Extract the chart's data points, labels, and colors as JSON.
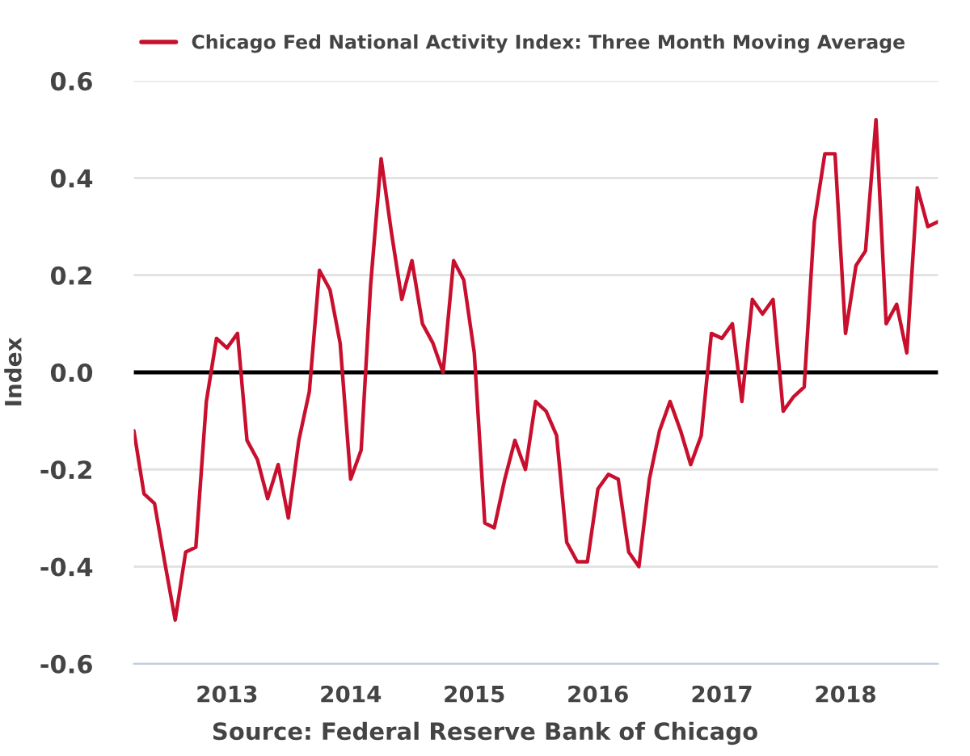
{
  "chart_data": {
    "type": "line",
    "x": [
      "2012-04",
      "2012-05",
      "2012-06",
      "2012-07",
      "2012-08",
      "2012-09",
      "2012-10",
      "2012-11",
      "2012-12",
      "2013-01",
      "2013-02",
      "2013-03",
      "2013-04",
      "2013-05",
      "2013-06",
      "2013-07",
      "2013-08",
      "2013-09",
      "2013-10",
      "2013-11",
      "2013-12",
      "2014-01",
      "2014-02",
      "2014-03",
      "2014-04",
      "2014-05",
      "2014-06",
      "2014-07",
      "2014-08",
      "2014-09",
      "2014-10",
      "2014-11",
      "2014-12",
      "2015-01",
      "2015-02",
      "2015-03",
      "2015-04",
      "2015-05",
      "2015-06",
      "2015-07",
      "2015-08",
      "2015-09",
      "2015-10",
      "2015-11",
      "2015-12",
      "2016-01",
      "2016-02",
      "2016-03",
      "2016-04",
      "2016-05",
      "2016-06",
      "2016-07",
      "2016-08",
      "2016-09",
      "2016-10",
      "2016-11",
      "2016-12",
      "2017-01",
      "2017-02",
      "2017-03",
      "2017-04",
      "2017-05",
      "2017-06",
      "2017-07",
      "2017-08",
      "2017-09",
      "2017-10",
      "2017-11",
      "2017-12",
      "2018-01",
      "2018-02",
      "2018-03",
      "2018-04",
      "2018-05",
      "2018-06",
      "2018-07",
      "2018-08",
      "2018-09",
      "2018-10"
    ],
    "series": [
      {
        "name": "Chicago Fed National Activity Index: Three Month Moving Average",
        "color": "#c8102e",
        "values": [
          -0.12,
          -0.25,
          -0.27,
          -0.39,
          -0.51,
          -0.37,
          -0.36,
          -0.06,
          0.07,
          0.05,
          0.08,
          -0.14,
          -0.18,
          -0.26,
          -0.19,
          -0.3,
          -0.14,
          -0.04,
          0.21,
          0.17,
          0.06,
          -0.22,
          -0.16,
          0.18,
          0.44,
          0.29,
          0.15,
          0.23,
          0.1,
          0.06,
          0.0,
          0.23,
          0.19,
          0.04,
          -0.31,
          -0.32,
          -0.22,
          -0.14,
          -0.2,
          -0.06,
          -0.08,
          -0.13,
          -0.35,
          -0.39,
          -0.39,
          -0.24,
          -0.21,
          -0.22,
          -0.37,
          -0.4,
          -0.22,
          -0.12,
          -0.06,
          -0.12,
          -0.19,
          -0.13,
          0.08,
          0.07,
          0.1,
          -0.06,
          0.15,
          0.12,
          0.15,
          -0.08,
          -0.05,
          -0.03,
          0.31,
          0.45,
          0.45,
          0.08,
          0.22,
          0.25,
          0.52,
          0.1,
          0.14,
          0.04,
          0.38,
          0.3,
          0.31
        ]
      }
    ],
    "xlim": [
      "2012-04",
      "2018-10"
    ],
    "xticks": [
      "2013",
      "2014",
      "2015",
      "2016",
      "2017",
      "2018"
    ],
    "ylim": [
      -0.6,
      0.6
    ],
    "yticks": [
      -0.6,
      -0.4,
      -0.2,
      {
        "value": 0,
        "label": "0.0"
      },
      0.2,
      0.4,
      0.6
    ],
    "ylabel": "Index",
    "ref_lines": [
      {
        "axis": "y",
        "value": 0,
        "color": "#000000"
      }
    ],
    "grid": "y",
    "legend": "top left",
    "line_style": "solid",
    "annotations": [
      "Source: Federal Reserve Bank of Chicago"
    ]
  }
}
